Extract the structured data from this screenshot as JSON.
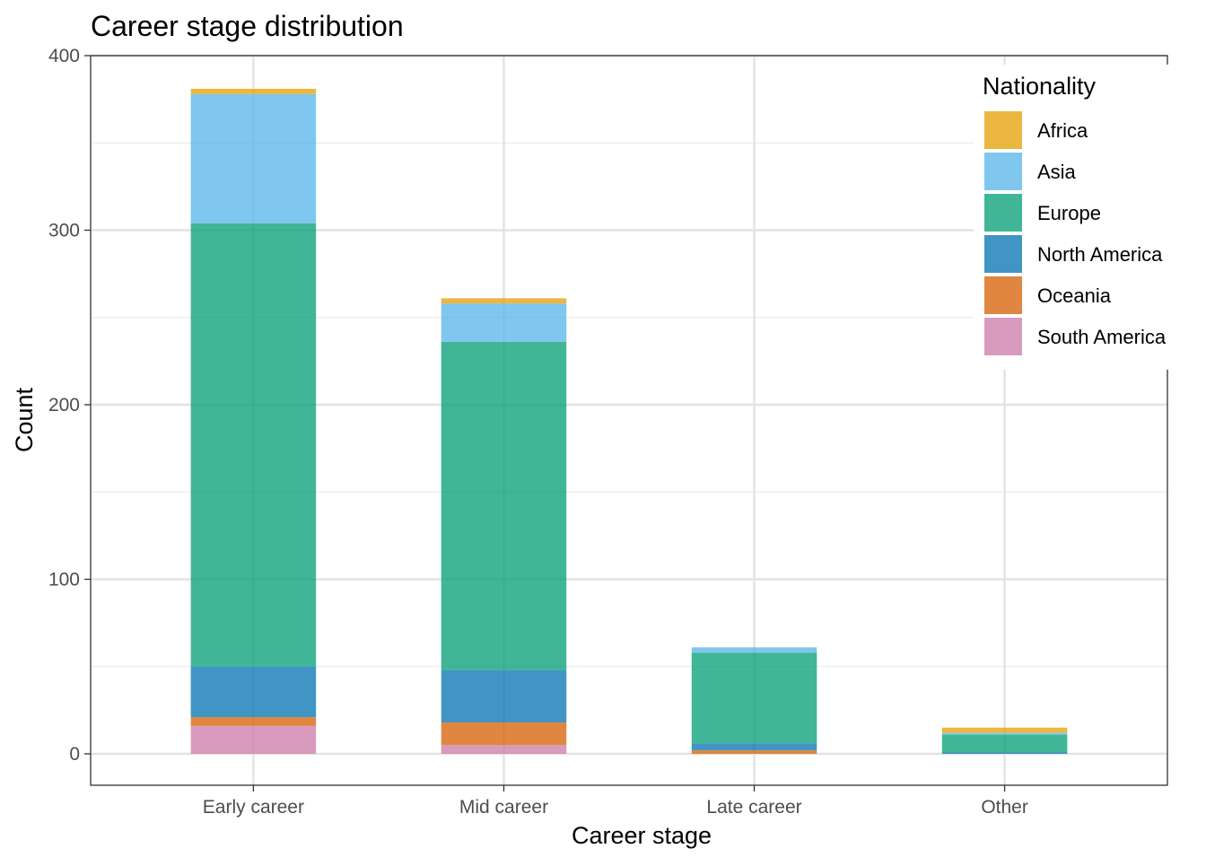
{
  "chart_data": {
    "type": "bar",
    "stacked": true,
    "title": "Career stage distribution",
    "xlabel": "Career stage",
    "ylabel": "Count",
    "ylim": [
      -18,
      400
    ],
    "yticks": [
      0,
      100,
      200,
      300,
      400
    ],
    "grid": true,
    "categories": [
      "Early career",
      "Mid career",
      "Late career",
      "Other"
    ],
    "legend": {
      "title": "Nationality",
      "placement": "top-right"
    },
    "series": [
      {
        "name": "South America",
        "color": "#CC79A7",
        "values": [
          16,
          5,
          0,
          0
        ]
      },
      {
        "name": "Oceania",
        "color": "#D55E00",
        "values": [
          5,
          13,
          2,
          0
        ]
      },
      {
        "name": "North America",
        "color": "#0072B2",
        "values": [
          29,
          30,
          4,
          1
        ]
      },
      {
        "name": "Europe",
        "color": "#009E73",
        "values": [
          254,
          188,
          52,
          10
        ]
      },
      {
        "name": "Asia",
        "color": "#56B4E9",
        "values": [
          74,
          22,
          3,
          1
        ]
      },
      {
        "name": "Africa",
        "color": "#E69F00",
        "values": [
          3,
          3,
          0,
          3
        ]
      }
    ]
  }
}
